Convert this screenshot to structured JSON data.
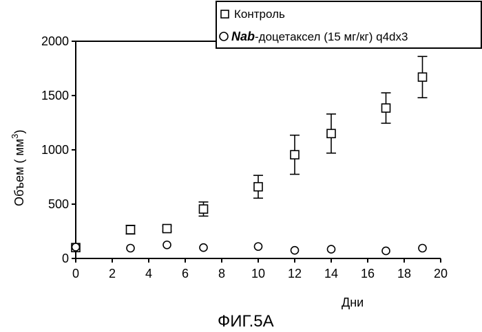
{
  "chart_data": {
    "type": "scatter",
    "xlabel": "Дни",
    "ylabel": "Объем  ( мм",
    "ylabel_sup": "3",
    "ylabel_end": ")",
    "xlim": [
      0,
      20
    ],
    "ylim": [
      0,
      2000
    ],
    "xticks": [
      0,
      2,
      4,
      6,
      8,
      10,
      12,
      14,
      16,
      18,
      20
    ],
    "yticks": [
      0,
      500,
      1000,
      1500,
      2000
    ],
    "grid": false,
    "legend_position": "top-right",
    "series": [
      {
        "name": "Контроль",
        "marker": "square",
        "points": [
          {
            "x": 0,
            "y": 100,
            "err": 0
          },
          {
            "x": 3,
            "y": 265,
            "err": 40
          },
          {
            "x": 5,
            "y": 275,
            "err": 25
          },
          {
            "x": 7,
            "y": 455,
            "err": 65
          },
          {
            "x": 10,
            "y": 660,
            "err": 105
          },
          {
            "x": 12,
            "y": 955,
            "err": 180
          },
          {
            "x": 14,
            "y": 1150,
            "err": 180
          },
          {
            "x": 17,
            "y": 1385,
            "err": 140
          },
          {
            "x": 19,
            "y": 1670,
            "err": 190
          }
        ]
      },
      {
        "name_emphasis": "Nab",
        "name_rest": "-доцетаксел (15   мг/кг) q4dx3",
        "marker": "circle",
        "points": [
          {
            "x": 0,
            "y": 105
          },
          {
            "x": 3,
            "y": 95
          },
          {
            "x": 5,
            "y": 125
          },
          {
            "x": 7,
            "y": 100
          },
          {
            "x": 10,
            "y": 110
          },
          {
            "x": 12,
            "y": 75
          },
          {
            "x": 14,
            "y": 85
          },
          {
            "x": 17,
            "y": 70
          },
          {
            "x": 19,
            "y": 95
          }
        ]
      }
    ]
  },
  "caption": "ФИГ.5А"
}
